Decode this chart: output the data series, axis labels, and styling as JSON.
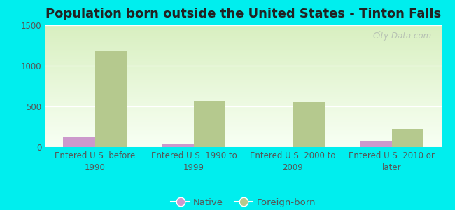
{
  "title": "Population born outside the United States - Tinton Falls",
  "categories": [
    "Entered U.S. before\n1990",
    "Entered U.S. 1990 to\n1999",
    "Entered U.S. 2000 to\n2009",
    "Entered U.S. 2010 or\nlater"
  ],
  "native_values": [
    130,
    45,
    0,
    75
  ],
  "foreign_values": [
    1185,
    570,
    555,
    225
  ],
  "native_color": "#cc99cc",
  "foreign_color": "#b5c98e",
  "gradient_top": "#d8efc0",
  "gradient_bottom": "#f8fff4",
  "outer_bg": "#00eeee",
  "ylim": [
    0,
    1500
  ],
  "yticks": [
    0,
    500,
    1000,
    1500
  ],
  "bar_width": 0.32,
  "title_fontsize": 13,
  "tick_fontsize": 8.5,
  "legend_fontsize": 9.5,
  "watermark": "City-Data.com"
}
